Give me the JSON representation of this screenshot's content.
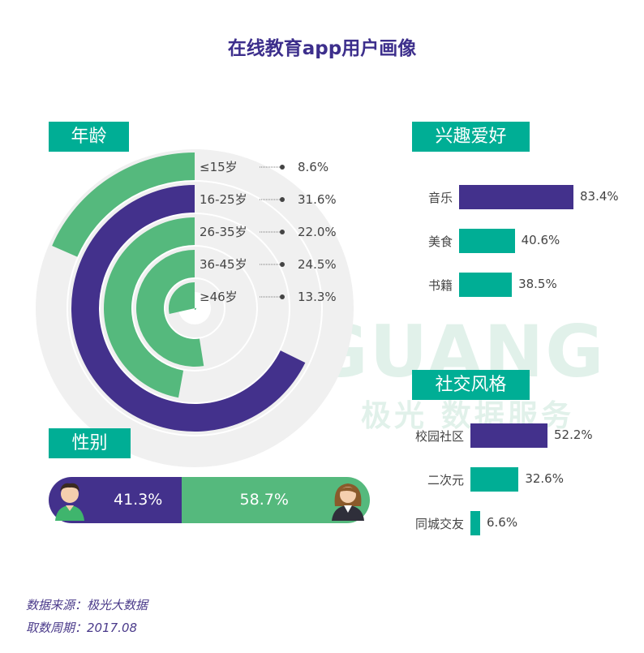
{
  "title": "在线教育app用户画像",
  "sections": {
    "age": "年龄",
    "hobby": "兴趣爱好",
    "social": "社交风格",
    "gender": "性别"
  },
  "watermark": {
    "word": "JIGUANG",
    "sub": "极光 数据服务"
  },
  "colors": {
    "purple": "#43318c",
    "green": "#55b97d",
    "teal": "#00ae95",
    "ring_bg": "#f0f0f0"
  },
  "chart_data": [
    {
      "type": "radial-bar",
      "name": "age",
      "unit": "%",
      "categories": [
        "≤15岁",
        "16-25岁",
        "26-35岁",
        "36-45岁",
        "≥46岁"
      ],
      "values": [
        8.6,
        31.6,
        22.0,
        24.5,
        13.3
      ],
      "value_labels": [
        "8.6%",
        "31.6%",
        "22.0%",
        "24.5%",
        "13.3%"
      ],
      "bar_colors": [
        "#55b97d",
        "#43318c",
        "#55b97d",
        "#55b97d",
        "#55b97d"
      ]
    },
    {
      "type": "bar",
      "orientation": "horizontal",
      "name": "hobby",
      "categories": [
        "音乐",
        "美食",
        "书籍"
      ],
      "values": [
        83.4,
        40.6,
        38.5
      ],
      "value_labels": [
        "83.4%",
        "40.6%",
        "38.5%"
      ],
      "bar_colors": [
        "#43318c",
        "#00ae95",
        "#00ae95"
      ]
    },
    {
      "type": "bar",
      "orientation": "horizontal",
      "name": "social",
      "categories": [
        "校园社区",
        "二次元",
        "同城交友"
      ],
      "values": [
        52.2,
        32.6,
        6.6
      ],
      "value_labels": [
        "52.2%",
        "32.6%",
        "6.6%"
      ],
      "bar_colors": [
        "#43318c",
        "#00ae95",
        "#00ae95"
      ]
    },
    {
      "type": "stacked-bar",
      "name": "gender",
      "categories": [
        "male",
        "female"
      ],
      "values": [
        41.3,
        58.7
      ],
      "value_labels": [
        "41.3%",
        "58.7%"
      ],
      "bar_colors": [
        "#43318c",
        "#55b97d"
      ]
    }
  ],
  "footer": {
    "source": "数据来源：极光大数据",
    "period": "取数周期：2017.08"
  }
}
